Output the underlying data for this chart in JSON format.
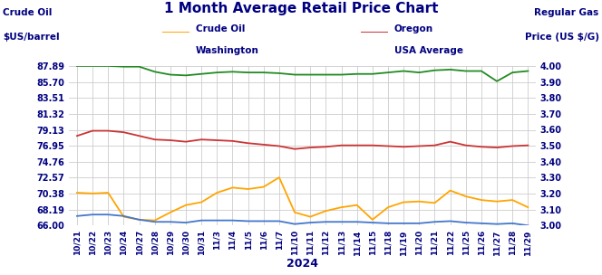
{
  "title": "1 Month Average Retail Price Chart",
  "left_ylabel_line1": "Crude Oil",
  "left_ylabel_line2": "$US/barrel",
  "right_ylabel_line1": "Regular Gas",
  "right_ylabel_line2": "Price (US $/G)",
  "xlabel": "2024",
  "dates": [
    "10/21",
    "10/22",
    "10/23",
    "10/24",
    "10/27",
    "10/28",
    "10/29",
    "10/30",
    "10/31",
    "11/3",
    "11/4",
    "11/5",
    "11/6",
    "11/7",
    "11/10",
    "11/11",
    "11/12",
    "11/13",
    "11/14",
    "11/15",
    "11/18",
    "11/19",
    "11/20",
    "11/21",
    "11/22",
    "11/25",
    "11/26",
    "11/27",
    "11/28",
    "11/29"
  ],
  "crude_oil": [
    70.5,
    70.4,
    70.5,
    67.2,
    66.8,
    66.7,
    67.8,
    68.8,
    69.2,
    70.5,
    71.2,
    71.0,
    71.3,
    72.6,
    67.8,
    67.2,
    68.0,
    68.5,
    68.8,
    66.8,
    68.5,
    69.2,
    69.3,
    69.1,
    70.8,
    70.0,
    69.5,
    69.3,
    69.5,
    68.5
  ],
  "washington": [
    87.9,
    87.9,
    87.9,
    87.8,
    87.8,
    87.1,
    86.7,
    86.6,
    86.8,
    87.0,
    87.1,
    87.0,
    87.0,
    86.9,
    86.7,
    86.7,
    86.7,
    86.7,
    86.8,
    86.8,
    87.0,
    87.2,
    87.0,
    87.3,
    87.4,
    87.2,
    87.2,
    85.8,
    87.0,
    87.2
  ],
  "oregon": [
    78.3,
    79.0,
    79.0,
    78.8,
    78.3,
    77.8,
    77.7,
    77.5,
    77.8,
    77.7,
    77.6,
    77.3,
    77.1,
    76.9,
    76.5,
    76.7,
    76.8,
    77.0,
    77.0,
    77.0,
    76.9,
    76.8,
    76.9,
    77.0,
    77.5,
    77.0,
    76.8,
    76.7,
    76.9,
    77.0
  ],
  "usa_avg": [
    67.3,
    67.5,
    67.5,
    67.3,
    66.8,
    66.5,
    66.5,
    66.4,
    66.7,
    66.7,
    66.7,
    66.6,
    66.6,
    66.6,
    66.2,
    66.4,
    66.5,
    66.5,
    66.5,
    66.4,
    66.3,
    66.3,
    66.3,
    66.5,
    66.6,
    66.4,
    66.3,
    66.2,
    66.3,
    66.0
  ],
  "left_ylim": [
    66.0,
    87.89
  ],
  "left_yticks": [
    87.89,
    85.7,
    83.51,
    81.32,
    79.13,
    76.95,
    74.76,
    72.57,
    70.38,
    68.19,
    66.0
  ],
  "right_ylim": [
    3.0,
    4.0
  ],
  "right_yticks": [
    4.0,
    3.9,
    3.8,
    3.7,
    3.6,
    3.5,
    3.4,
    3.3,
    3.2,
    3.1,
    3.0
  ],
  "colors": {
    "crude_oil": "#FFA500",
    "washington": "#228B22",
    "oregon": "#CC3333",
    "usa_avg": "#4477CC"
  },
  "background_color": "#FFFFFF",
  "grid_color": "#CCCCCC",
  "title_color": "#000080",
  "label_color": "#000080",
  "tick_color": "#000080"
}
